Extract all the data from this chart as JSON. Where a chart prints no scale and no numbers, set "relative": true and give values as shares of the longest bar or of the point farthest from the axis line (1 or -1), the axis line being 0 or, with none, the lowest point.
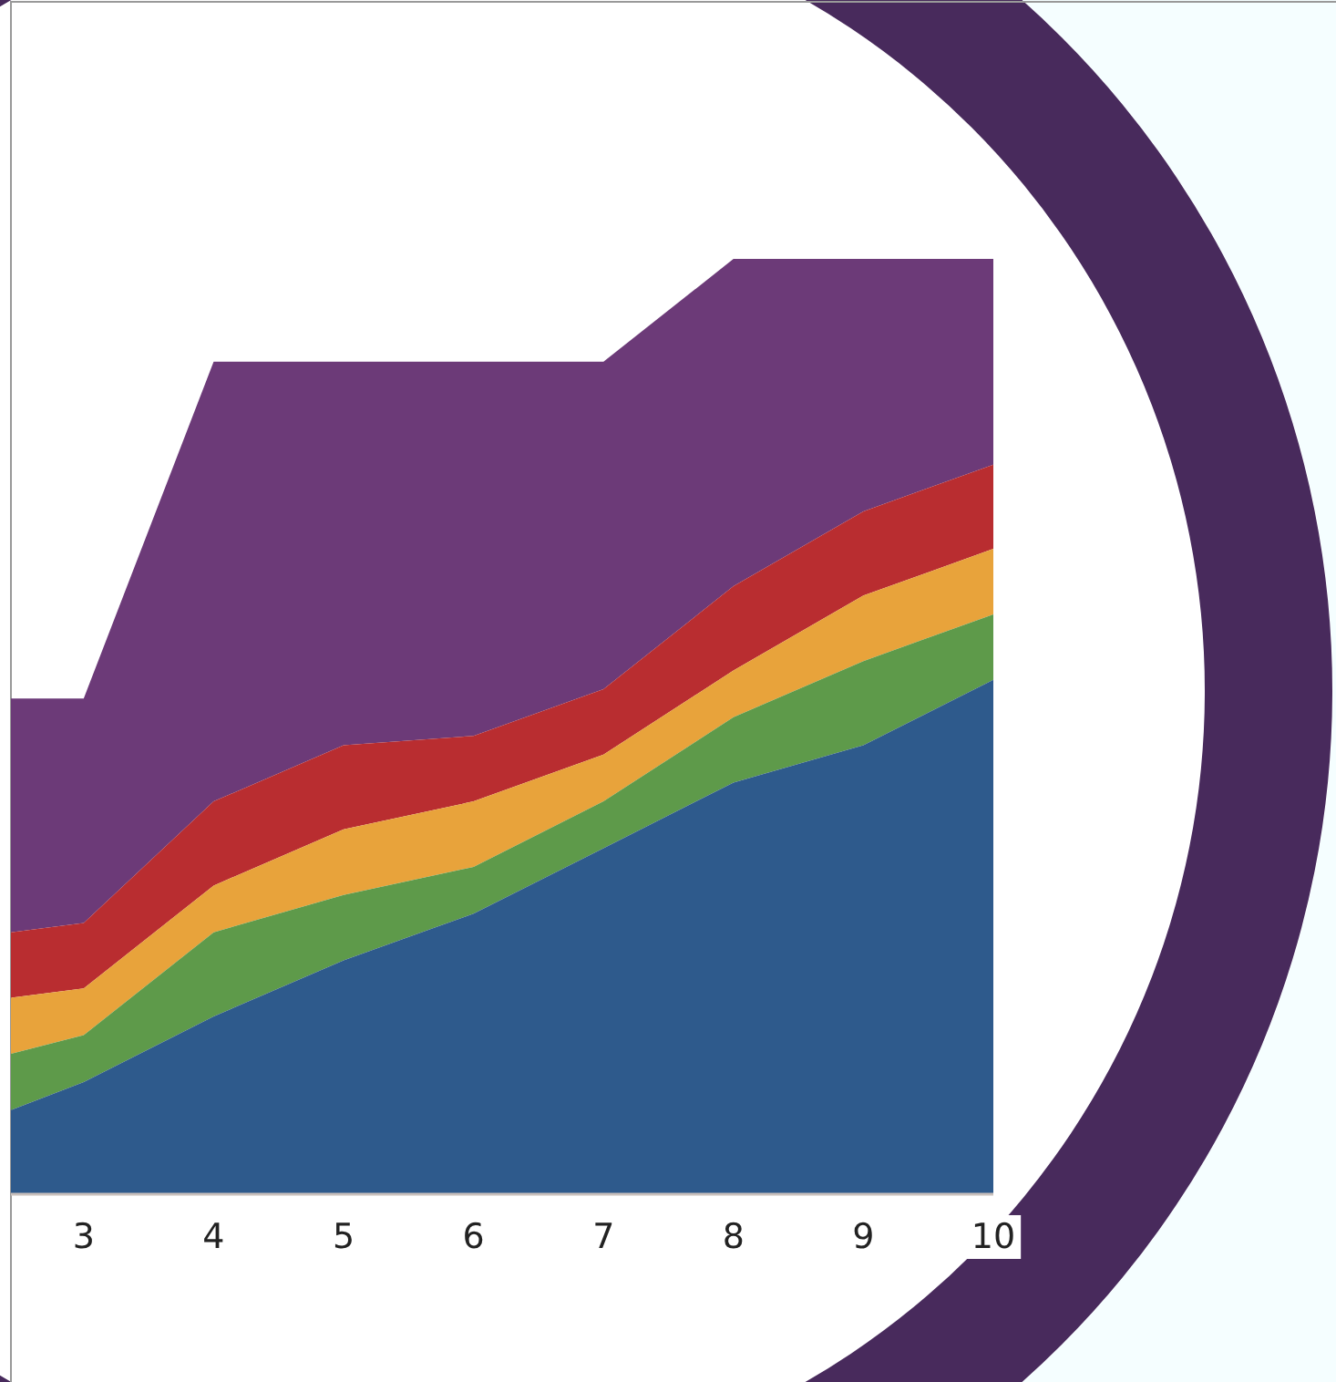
{
  "chart_data": {
    "type": "area",
    "stacked": true,
    "relative": true,
    "x": [
      2.44,
      3,
      4,
      5,
      6,
      7,
      8,
      9,
      10
    ],
    "xlim": [
      2.44,
      10
    ],
    "xticks": [
      3,
      4,
      5,
      6,
      7,
      8,
      9,
      10
    ],
    "tick_labels": "x",
    "series": [
      {
        "color": "#2e5a8c",
        "values": [
          0.09,
          0.12,
          0.19,
          0.25,
          0.3,
          0.37,
          0.44,
          0.48,
          0.55
        ]
      },
      {
        "color": "#5e9a4a",
        "values": [
          0.06,
          0.05,
          0.09,
          0.07,
          0.05,
          0.05,
          0.07,
          0.09,
          0.07
        ]
      },
      {
        "color": "#e8a33b",
        "values": [
          0.06,
          0.05,
          0.05,
          0.07,
          0.07,
          0.05,
          0.05,
          0.07,
          0.07
        ]
      },
      {
        "color": "#b92d30",
        "values": [
          0.07,
          0.07,
          0.09,
          0.09,
          0.07,
          0.07,
          0.09,
          0.09,
          0.09
        ]
      },
      {
        "color": "#6c3a78",
        "values": [
          0.25,
          0.24,
          0.47,
          0.41,
          0.4,
          0.35,
          0.35,
          0.27,
          0.22
        ]
      }
    ]
  }
}
